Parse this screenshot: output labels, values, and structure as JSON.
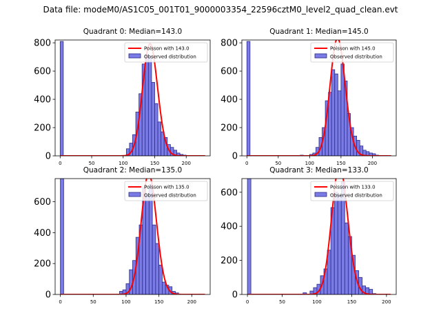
{
  "figure_title": "Data file: modeM0/AS1C05_001T01_9000003354_22596cztM0_level2_quad_clean.evt",
  "colors": {
    "bar_fill": "#7b7be6",
    "bar_edge": "#2a2a8a",
    "curve": "#ff0000"
  },
  "chart_data": [
    {
      "type": "bar",
      "title": "Quadrant 0: Median=143.0",
      "legend": [
        "Poisson with 143.0",
        "Observed distribution"
      ],
      "legend_position": "top-right",
      "median": 143.0,
      "bin_width": 5,
      "bins_start": [
        0,
        105,
        110,
        115,
        120,
        125,
        130,
        135,
        140,
        145,
        150,
        155,
        160,
        165,
        170,
        175,
        180,
        185,
        190,
        195
      ],
      "values": [
        810,
        50,
        90,
        150,
        310,
        440,
        650,
        720,
        700,
        520,
        370,
        240,
        170,
        130,
        80,
        60,
        40,
        20,
        10,
        5
      ],
      "xlim": [
        -8,
        238
      ],
      "ylim": [
        0,
        820
      ],
      "xticks": [
        0,
        50,
        100,
        150,
        200
      ],
      "yticks": [
        0,
        200,
        400,
        600,
        800
      ],
      "xlabel": "",
      "ylabel": ""
    },
    {
      "type": "bar",
      "title": "Quadrant 1: Median=145.0",
      "legend": [
        "Poisson with 145.0",
        "Observed distribution"
      ],
      "legend_position": "top-right",
      "median": 145.0,
      "bin_width": 5,
      "bins_start": [
        0,
        85,
        100,
        105,
        110,
        115,
        120,
        125,
        130,
        135,
        140,
        145,
        150,
        155,
        160,
        165,
        170,
        175,
        180,
        185,
        190,
        195,
        200,
        205
      ],
      "values": [
        810,
        5,
        10,
        20,
        60,
        130,
        200,
        390,
        450,
        610,
        580,
        460,
        650,
        530,
        300,
        200,
        140,
        110,
        70,
        40,
        30,
        20,
        15,
        5
      ],
      "xlim": [
        -8,
        238
      ],
      "ylim": [
        0,
        820
      ],
      "xticks": [
        0,
        50,
        100,
        150,
        200
      ],
      "yticks": [
        0,
        200,
        400,
        600,
        800
      ],
      "xlabel": "",
      "ylabel": ""
    },
    {
      "type": "bar",
      "title": "Quadrant 2: Median=135.0",
      "legend": [
        "Poisson with 135.0",
        "Observed distribution"
      ],
      "legend_position": "top-right",
      "median": 135.0,
      "bin_width": 5,
      "bins_start": [
        0,
        90,
        95,
        100,
        105,
        110,
        115,
        120,
        125,
        130,
        135,
        140,
        145,
        150,
        155,
        160,
        165,
        170,
        175
      ],
      "values": [
        750,
        20,
        30,
        70,
        160,
        220,
        370,
        450,
        690,
        640,
        710,
        450,
        330,
        190,
        80,
        60,
        50,
        20,
        10
      ],
      "xlim": [
        -8,
        228
      ],
      "ylim": [
        0,
        750
      ],
      "xticks": [
        0,
        50,
        100,
        150,
        200
      ],
      "yticks": [
        0,
        200,
        400,
        600
      ],
      "xlabel": "",
      "ylabel": ""
    },
    {
      "type": "bar",
      "title": "Quadrant 3: Median=133.0",
      "legend": [
        "Poisson with 133.0",
        "Observed distribution"
      ],
      "legend_position": "top-right",
      "median": 133.0,
      "bin_width": 5,
      "bins_start": [
        0,
        80,
        90,
        95,
        100,
        105,
        110,
        115,
        120,
        125,
        130,
        135,
        140,
        145,
        150,
        155,
        160,
        165,
        170,
        175,
        180
      ],
      "values": [
        680,
        10,
        20,
        40,
        60,
        110,
        150,
        260,
        510,
        600,
        580,
        660,
        420,
        340,
        230,
        140,
        100,
        50,
        40,
        30,
        5
      ],
      "xlim": [
        -8,
        214
      ],
      "ylim": [
        0,
        680
      ],
      "xticks": [
        0,
        50,
        100,
        150,
        200
      ],
      "yticks": [
        0,
        200,
        400,
        600
      ],
      "xlabel": "",
      "ylabel": ""
    }
  ]
}
